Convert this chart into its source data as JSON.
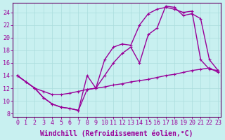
{
  "xlabel": "Windchill (Refroidissement éolien,°C)",
  "background_color": "#c8f0f0",
  "line_color": "#990099",
  "xlim": [
    -0.5,
    23.3
  ],
  "ylim": [
    7.5,
    25.5
  ],
  "yticks": [
    8,
    10,
    12,
    14,
    16,
    18,
    20,
    22,
    24
  ],
  "xticks": [
    0,
    1,
    2,
    3,
    4,
    5,
    6,
    7,
    8,
    9,
    10,
    11,
    12,
    13,
    14,
    15,
    16,
    17,
    18,
    19,
    20,
    21,
    22,
    23
  ],
  "line1_x": [
    0,
    1,
    2,
    3,
    4,
    5,
    6,
    7,
    8,
    9,
    10,
    11,
    12,
    13,
    14,
    15,
    16,
    17,
    18,
    19,
    20,
    21,
    22,
    23
  ],
  "line1_y": [
    14.0,
    13.0,
    12.0,
    11.5,
    11.0,
    11.0,
    11.2,
    11.5,
    11.8,
    12.0,
    12.2,
    12.5,
    12.7,
    13.0,
    13.2,
    13.4,
    13.7,
    14.0,
    14.2,
    14.5,
    14.8,
    15.0,
    15.2,
    14.5
  ],
  "line2_x": [
    0,
    1,
    2,
    3,
    4,
    5,
    6,
    7,
    8,
    9,
    10,
    11,
    12,
    13,
    14,
    15,
    16,
    17,
    18,
    19,
    20,
    21,
    22,
    23
  ],
  "line2_y": [
    14.0,
    13.0,
    12.0,
    10.5,
    9.5,
    9.0,
    8.8,
    8.5,
    11.8,
    12.0,
    14.0,
    16.0,
    17.5,
    18.5,
    16.0,
    20.5,
    21.5,
    25.0,
    24.8,
    23.5,
    23.8,
    23.0,
    16.5,
    14.8
  ],
  "line3_x": [
    0,
    2,
    3,
    4,
    5,
    6,
    7,
    8,
    9,
    10,
    11,
    12,
    13,
    14,
    15,
    16,
    17,
    18,
    19,
    20,
    21,
    22,
    23
  ],
  "line3_y": [
    14.0,
    12.0,
    10.5,
    9.5,
    9.0,
    8.8,
    8.5,
    14.0,
    12.0,
    16.5,
    18.5,
    19.0,
    18.8,
    22.0,
    23.8,
    24.5,
    24.8,
    24.5,
    24.0,
    24.2,
    16.5,
    15.0,
    14.8
  ],
  "marker_size": 3.5,
  "line_width": 1.0,
  "font_size_label": 7,
  "font_size_tick": 6.0,
  "grid_color": "#aadddd",
  "spine_color": "#660066"
}
